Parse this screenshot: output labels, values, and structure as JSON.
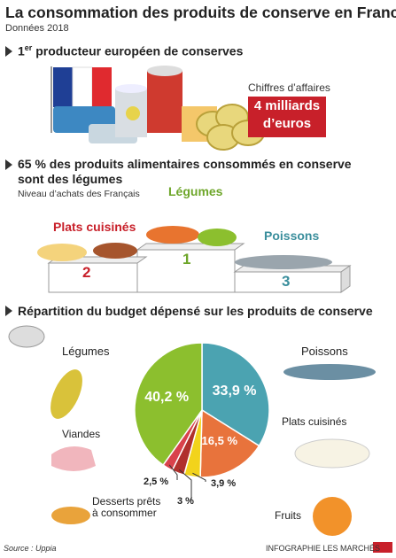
{
  "header": {
    "title": "La consommation des produits de conserve en France",
    "subtitle": "Données 2018"
  },
  "section1": {
    "heading_number": "1",
    "heading_sup": "er",
    "heading_rest": " producteur européen de conserves",
    "revenue_caption": "Chiffres d’affaires",
    "revenue_line1": "4 milliards",
    "revenue_line2": "d’euros"
  },
  "section2": {
    "heading": "65 % des produits alimentaires consommés en conserve sont des légumes",
    "note": "Niveau d’achats des Français",
    "podium": [
      {
        "label": "Plats cuisinés",
        "rank": "2"
      },
      {
        "label": "Légumes",
        "rank": "1"
      },
      {
        "label": "Poissons",
        "rank": "3"
      }
    ]
  },
  "section3": {
    "heading": "Répartition du budget dépensé sur les produits de conserve"
  },
  "chart_data": {
    "type": "pie",
    "categories": [
      "Poissons",
      "Plats cuisinés",
      "Fruits",
      "Desserts prêts à consommer",
      "Viandes",
      "Légumes"
    ],
    "values": [
      33.9,
      16.5,
      3.9,
      3,
      2.5,
      40.2
    ],
    "value_labels": [
      "33,9 %",
      "16,5 %",
      "3,9 %",
      "3 %",
      "2,5 %",
      "40,2 %"
    ],
    "colors": [
      "#4ba3b1",
      "#e8733c",
      "#f2d31b",
      "#b0302c",
      "#d9424c",
      "#8cbf2e"
    ]
  },
  "footer": {
    "source": "Source : Uppia",
    "credit": "INFOGRAPHIE LES MARCHÉS"
  }
}
